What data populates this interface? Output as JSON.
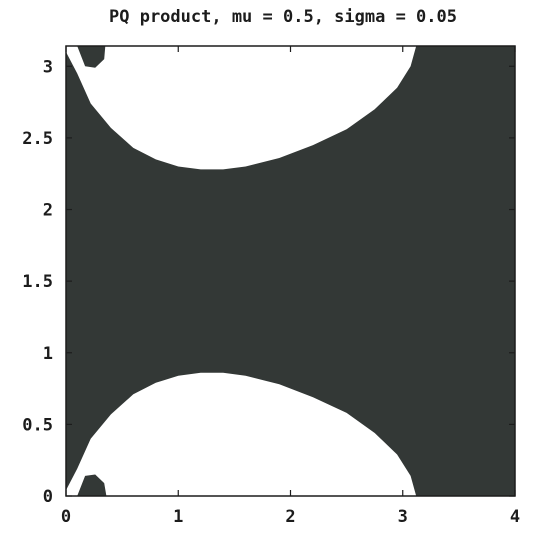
{
  "chart_data": {
    "type": "heatmap",
    "title": "PQ product, mu = 0.5,  sigma = 0.05",
    "xlabel": "",
    "ylabel": "",
    "xlim": [
      0,
      4
    ],
    "ylim": [
      0,
      3.14159
    ],
    "x_ticks": [
      "0",
      "1",
      "2",
      "3",
      "4"
    ],
    "x_tick_values": [
      0,
      1,
      2,
      3,
      4
    ],
    "y_ticks": [
      "0",
      "0.5",
      "1",
      "1.5",
      "2",
      "2.5",
      "3"
    ],
    "y_tick_values": [
      0,
      0.5,
      1,
      1.5,
      2,
      2.5,
      3
    ],
    "grid": false,
    "colors": {
      "filled": "#333836",
      "empty": "#ffffff",
      "frame": "#1c1c1c"
    },
    "regions": [
      {
        "name": "upper-white-region",
        "fill": "empty",
        "boundary": [
          [
            0.1,
            2.95
          ],
          [
            0.22,
            2.74
          ],
          [
            0.4,
            2.57
          ],
          [
            0.6,
            2.43
          ],
          [
            0.8,
            2.35
          ],
          [
            1.0,
            2.3
          ],
          [
            1.2,
            2.28
          ],
          [
            1.4,
            2.28
          ],
          [
            1.6,
            2.3
          ],
          [
            1.9,
            2.36
          ],
          [
            2.2,
            2.45
          ],
          [
            2.5,
            2.56
          ],
          [
            2.75,
            2.7
          ],
          [
            2.95,
            2.85
          ],
          [
            3.07,
            3.0
          ],
          [
            3.12,
            3.14159
          ],
          [
            0.35,
            3.14159
          ],
          [
            0.34,
            3.05
          ],
          [
            0.26,
            2.99
          ],
          [
            0.17,
            3.0
          ],
          [
            0.1,
            3.14159
          ],
          [
            0.0,
            3.14159
          ],
          [
            0.0,
            3.1
          ]
        ]
      },
      {
        "name": "lower-white-region",
        "fill": "empty",
        "boundary": [
          [
            0.1,
            0.19
          ],
          [
            0.22,
            0.4
          ],
          [
            0.4,
            0.57
          ],
          [
            0.6,
            0.71
          ],
          [
            0.8,
            0.79
          ],
          [
            1.0,
            0.84
          ],
          [
            1.2,
            0.86
          ],
          [
            1.4,
            0.86
          ],
          [
            1.6,
            0.84
          ],
          [
            1.9,
            0.78
          ],
          [
            2.2,
            0.69
          ],
          [
            2.5,
            0.58
          ],
          [
            2.75,
            0.44
          ],
          [
            2.95,
            0.29
          ],
          [
            3.07,
            0.14
          ],
          [
            3.12,
            0.0
          ],
          [
            0.36,
            0.0
          ],
          [
            0.34,
            0.09
          ],
          [
            0.26,
            0.15
          ],
          [
            0.17,
            0.14
          ],
          [
            0.1,
            0.0
          ],
          [
            0.0,
            0.0
          ],
          [
            0.0,
            0.04
          ]
        ]
      }
    ]
  }
}
